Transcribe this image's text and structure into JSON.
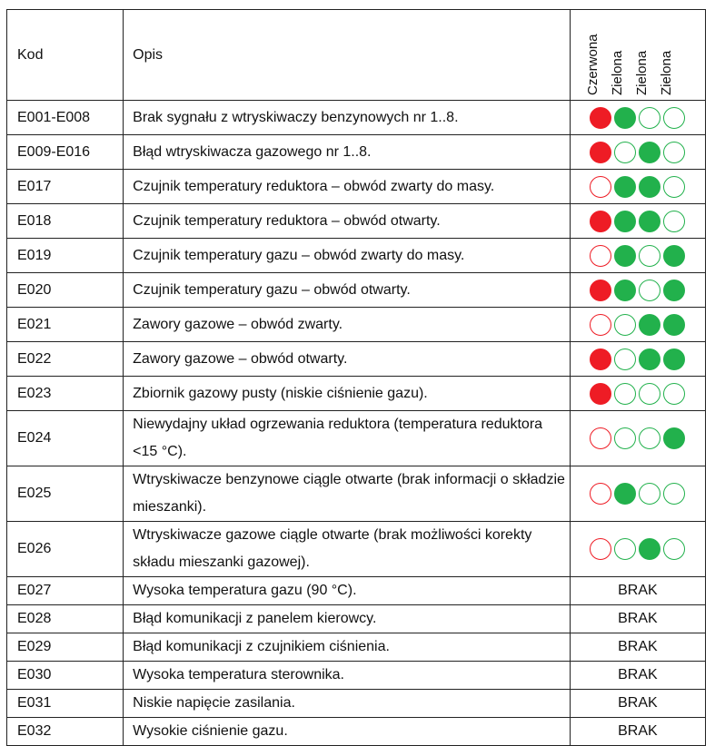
{
  "header": {
    "code_label": "Kod",
    "desc_label": "Opis",
    "colors": [
      "Czerwona",
      "Zielona",
      "Zielona",
      "Zielona"
    ]
  },
  "colors": {
    "red": "#ee1c25",
    "green": "#22b14c",
    "border": "#222222"
  },
  "rows": [
    {
      "code": "E001-E008",
      "desc": "Brak sygnału z wtryskiwaczy benzynowych nr 1..8.",
      "lights": [
        1,
        1,
        0,
        0
      ]
    },
    {
      "code": "E009-E016",
      "desc": "Błąd wtryskiwacza gazowego nr 1..8.",
      "lights": [
        1,
        0,
        1,
        0
      ]
    },
    {
      "code": "E017",
      "desc": "Czujnik temperatury reduktora – obwód zwarty do masy.",
      "lights": [
        0,
        1,
        1,
        0
      ]
    },
    {
      "code": "E018",
      "desc": "Czujnik temperatury reduktora – obwód otwarty.",
      "lights": [
        1,
        1,
        1,
        0
      ]
    },
    {
      "code": "E019",
      "desc": "Czujnik temperatury gazu – obwód zwarty do masy.",
      "lights": [
        0,
        1,
        0,
        1
      ]
    },
    {
      "code": "E020",
      "desc": "Czujnik temperatury gazu – obwód otwarty.",
      "lights": [
        1,
        1,
        0,
        1
      ]
    },
    {
      "code": "E021",
      "desc": "Zawory gazowe – obwód zwarty.",
      "lights": [
        0,
        0,
        1,
        1
      ]
    },
    {
      "code": "E022",
      "desc": "Zawory gazowe – obwód otwarty.",
      "lights": [
        1,
        0,
        1,
        1
      ]
    },
    {
      "code": "E023",
      "desc": "Zbiornik gazowy pusty (niskie ciśnienie gazu).",
      "lights": [
        1,
        0,
        0,
        0
      ]
    },
    {
      "code": "E024",
      "desc": "Niewydajny układ ogrzewania reduktora (temperatura reduktora <15 °C).",
      "lights": [
        0,
        0,
        0,
        1
      ]
    },
    {
      "code": "E025",
      "desc": "Wtryskiwacze benzynowe ciągle otwarte (brak informacji o składzie mieszanki).",
      "lights": [
        0,
        1,
        0,
        0
      ]
    },
    {
      "code": "E026",
      "desc": "Wtryskiwacze gazowe ciągle otwarte (brak możliwości korekty składu mieszanki gazowej).",
      "lights": [
        0,
        0,
        1,
        0
      ]
    },
    {
      "code": "E027",
      "desc": "Wysoka temperatura gazu (90 °C).",
      "status": "BRAK"
    },
    {
      "code": "E028",
      "desc": "Błąd komunikacji z panelem kierowcy.",
      "status": "BRAK"
    },
    {
      "code": "E029",
      "desc": "Błąd komunikacji z czujnikiem ciśnienia.",
      "status": "BRAK"
    },
    {
      "code": "E030",
      "desc": "Wysoka temperatura sterownika.",
      "status": "BRAK"
    },
    {
      "code": "E031",
      "desc": "Niskie napięcie zasilania.",
      "status": "BRAK"
    },
    {
      "code": "E032",
      "desc": "Wysokie ciśnienie gazu.",
      "status": "BRAK"
    }
  ]
}
